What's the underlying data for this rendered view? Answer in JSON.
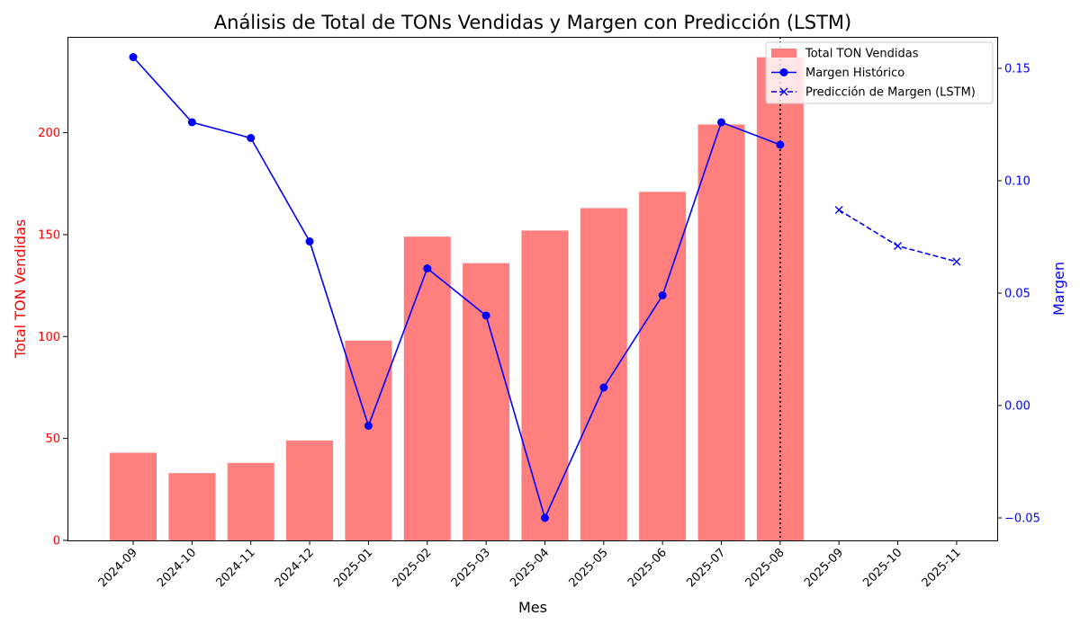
{
  "chart_data": {
    "type": "bar",
    "title": "Análisis de Total de TONs Vendidas y Margen con Predicción (LSTM)",
    "xlabel": "Mes",
    "ylabel_left": "Total TON Vendidas",
    "ylabel_right": "Margen",
    "categories": [
      "2024-09",
      "2024-10",
      "2024-11",
      "2024-12",
      "2025-01",
      "2025-02",
      "2025-03",
      "2025-04",
      "2025-05",
      "2025-06",
      "2025-07",
      "2025-08",
      "2025-09",
      "2025-10",
      "2025-11"
    ],
    "ylim_left": [
      0,
      247
    ],
    "ylim_right": [
      -0.06,
      0.164
    ],
    "yticks_left": [
      0,
      50,
      100,
      150,
      200
    ],
    "yticks_right": [
      -0.05,
      0.0,
      0.05,
      0.1,
      0.15
    ],
    "yticks_right_labels": [
      "−0.05",
      "0.00",
      "0.05",
      "0.10",
      "0.15"
    ],
    "series": [
      {
        "name": "Total TON Vendidas",
        "kind": "bar",
        "axis": "left",
        "color": "#ff7f7f",
        "values": [
          43,
          33,
          38,
          49,
          98,
          149,
          136,
          152,
          163,
          171,
          204,
          237,
          null,
          null,
          null
        ]
      },
      {
        "name": "Margen Histórico",
        "kind": "line",
        "axis": "right",
        "color": "#0000ff",
        "marker": "circle",
        "values": [
          0.155,
          0.126,
          0.119,
          0.073,
          -0.009,
          0.061,
          0.04,
          -0.05,
          0.008,
          0.049,
          0.126,
          0.116,
          null,
          null,
          null
        ]
      },
      {
        "name": "Predicción de Margen (LSTM)",
        "kind": "line",
        "axis": "right",
        "color": "#0000ff",
        "marker": "x",
        "dashed": true,
        "values": [
          null,
          null,
          null,
          null,
          null,
          null,
          null,
          null,
          null,
          null,
          null,
          null,
          0.087,
          0.071,
          0.064
        ]
      }
    ],
    "vline_category": "2025-08",
    "legend_position": "top-right",
    "grid": false,
    "left_axis_color": "#ff0000",
    "right_axis_color": "#0000ff"
  }
}
